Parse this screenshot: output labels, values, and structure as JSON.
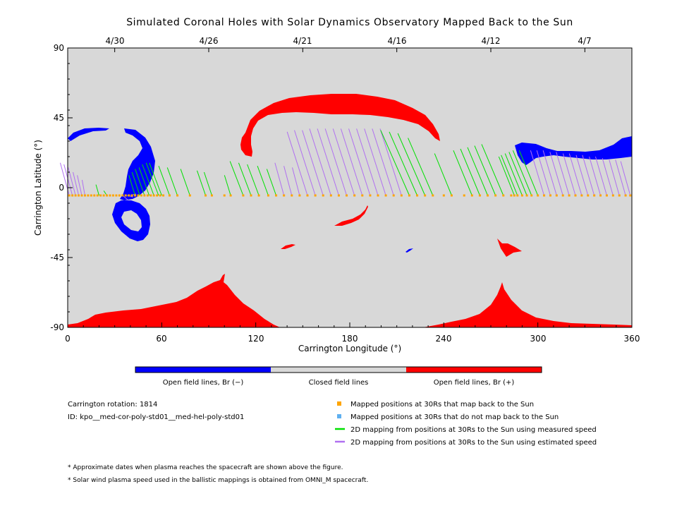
{
  "chart_data": {
    "type": "scatter",
    "title": "Simulated Coronal Holes with Solar Dynamics Observatory Mapped Back to the Sun",
    "xlabel": "Carrington Longitude (°)",
    "ylabel": "Carrington Latitude (°)",
    "xlim": [
      0,
      360
    ],
    "ylim": [
      -90,
      90
    ],
    "x_ticks": [
      "0",
      "60",
      "120",
      "180",
      "240",
      "300",
      "360"
    ],
    "y_ticks": [
      "90",
      "45",
      "0",
      "-45",
      "-90"
    ],
    "top_axis_dates": [
      {
        "label": "4/30",
        "lon": 30
      },
      {
        "label": "4/26",
        "lon": 90
      },
      {
        "label": "4/21",
        "lon": 150
      },
      {
        "label": "4/16",
        "lon": 210
      },
      {
        "label": "4/12",
        "lon": 270
      },
      {
        "label": "4/7",
        "lon": 330
      }
    ],
    "colorbar": [
      {
        "label": "Open field lines, Br (−)",
        "color": "#0000ff"
      },
      {
        "label": "Closed field lines",
        "color": "#d8d8d8"
      },
      {
        "label": "Open field lines, Br (+)",
        "color": "#ff0000"
      }
    ],
    "mapped_latitude": -5,
    "mapped_points_lon": [
      1,
      3,
      5,
      7,
      9,
      11,
      13,
      15,
      17,
      19,
      21,
      23,
      25,
      27,
      29,
      31,
      33,
      35,
      37,
      39,
      41,
      43,
      45,
      47,
      49,
      51,
      53,
      55,
      57,
      59,
      61,
      65,
      70,
      78,
      88,
      92,
      100,
      104,
      112,
      117,
      122,
      128,
      133,
      138,
      143,
      148,
      153,
      158,
      163,
      168,
      173,
      178,
      183,
      188,
      193,
      198,
      203,
      208,
      213,
      218,
      223,
      228,
      233,
      240,
      245,
      253,
      258,
      263,
      268,
      273,
      278,
      283,
      285,
      287,
      290,
      293,
      296,
      300,
      304,
      308,
      312,
      316,
      320,
      324,
      328,
      332,
      336,
      340,
      344,
      348,
      352,
      356,
      359
    ],
    "green_mappings": [
      [
        20,
        2
      ],
      [
        25,
        -2
      ],
      [
        43,
        8
      ],
      [
        46,
        10
      ],
      [
        49,
        12
      ],
      [
        52,
        13
      ],
      [
        55,
        15
      ],
      [
        58,
        16
      ],
      [
        60,
        16
      ],
      [
        65,
        14
      ],
      [
        70,
        13
      ],
      [
        78,
        12
      ],
      [
        88,
        11
      ],
      [
        92,
        10
      ],
      [
        104,
        8
      ],
      [
        112,
        17
      ],
      [
        117,
        16
      ],
      [
        122,
        15
      ],
      [
        128,
        14
      ],
      [
        133,
        12
      ],
      [
        218,
        37
      ],
      [
        223,
        36
      ],
      [
        228,
        35
      ],
      [
        233,
        32
      ],
      [
        245,
        22
      ],
      [
        258,
        24
      ],
      [
        263,
        25
      ],
      [
        268,
        26
      ],
      [
        273,
        27
      ],
      [
        278,
        28
      ],
      [
        285,
        20
      ],
      [
        287,
        21
      ],
      [
        290,
        22
      ],
      [
        293,
        23
      ],
      [
        296,
        24
      ],
      [
        300,
        24
      ]
    ],
    "purple_mappings": [
      [
        1,
        16
      ],
      [
        3,
        15
      ],
      [
        5,
        13
      ],
      [
        7,
        10
      ],
      [
        9,
        8
      ],
      [
        11,
        5
      ],
      [
        35,
        -8
      ],
      [
        38,
        -6
      ],
      [
        40,
        -4
      ],
      [
        138,
        16
      ],
      [
        143,
        14
      ],
      [
        148,
        13
      ],
      [
        153,
        36
      ],
      [
        158,
        37
      ],
      [
        163,
        37
      ],
      [
        168,
        38
      ],
      [
        173,
        38
      ],
      [
        178,
        38
      ],
      [
        183,
        38
      ],
      [
        188,
        38
      ],
      [
        193,
        38
      ],
      [
        198,
        38
      ],
      [
        203,
        38
      ],
      [
        208,
        38
      ],
      [
        213,
        38
      ],
      [
        304,
        24
      ],
      [
        308,
        24
      ],
      [
        312,
        24
      ],
      [
        316,
        23
      ],
      [
        320,
        23
      ],
      [
        324,
        22
      ],
      [
        328,
        22
      ],
      [
        332,
        21
      ],
      [
        336,
        21
      ],
      [
        340,
        20
      ],
      [
        344,
        20
      ],
      [
        348,
        19
      ],
      [
        352,
        18
      ],
      [
        356,
        18
      ],
      [
        359,
        17
      ]
    ],
    "legend": [
      {
        "label": "Mapped positions at 30Rs that map back to the Sun",
        "color": "#ffa500"
      },
      {
        "label": "Mapped positions at 30Rs that do not map back to the Sun",
        "color": "#5fb0f0"
      },
      {
        "label": "2D mapping from positions at 30Rs to the Sun using measured speed",
        "color": "#00e000"
      },
      {
        "label": "2D mapping from positions at 30Rs to the Sun using estimated speed",
        "color": "#b070f0"
      }
    ]
  },
  "info": {
    "rotation": "Carrington rotation: 1814",
    "id": "ID: kpo__med-cor-poly-std01__med-hel-poly-std01"
  },
  "notes": [
    "* Approximate dates when plasma reaches the spacecraft are shown above the figure.",
    "* Solar wind plasma speed used in the ballistic mappings is obtained from OMNI_M spacecraft."
  ]
}
